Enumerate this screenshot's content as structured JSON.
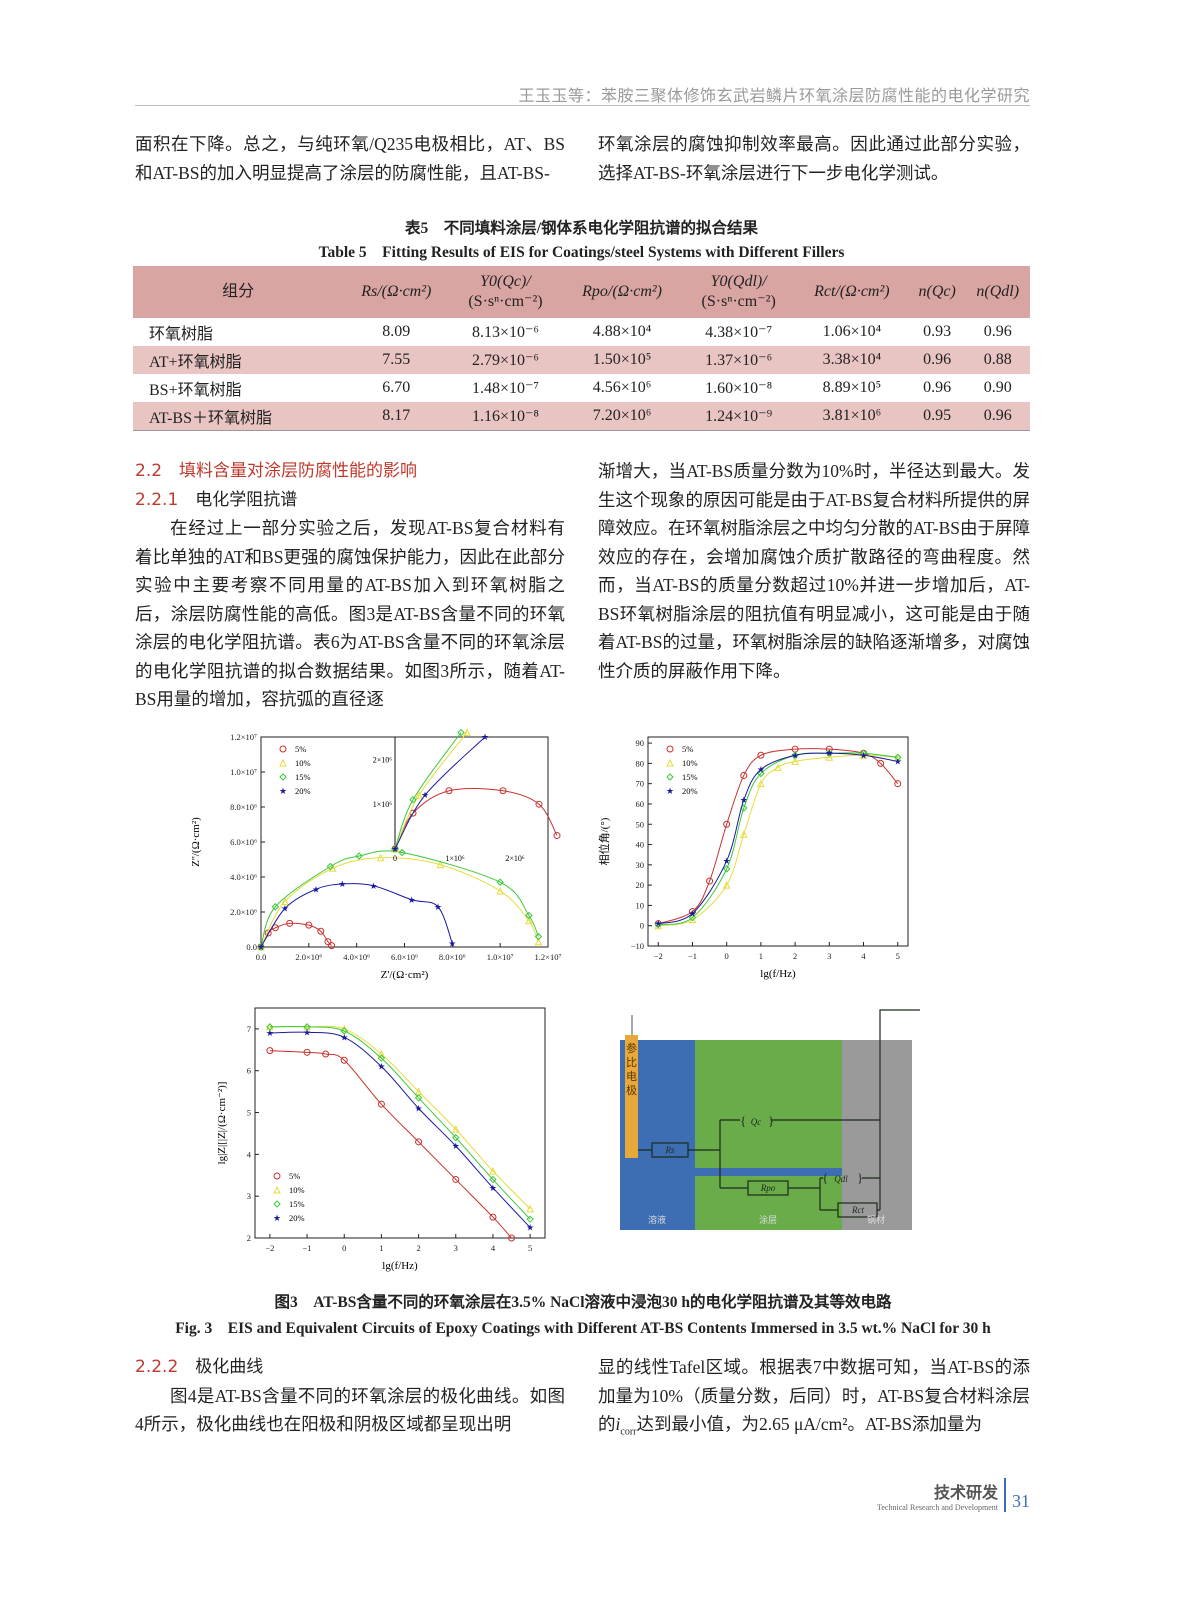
{
  "header": {
    "running_title": "王玉玉等：苯胺三聚体修饰玄武岩鳞片环氧涂层防腐性能的电化学研究"
  },
  "top_text": {
    "left": "面积在下降。总之，与纯环氧/Q235电极相比，AT、BS和AT-BS的加入明显提高了涂层的防腐性能，且AT-BS-",
    "right": "环氧涂层的腐蚀抑制效率最高。因此通过此部分实验，选择AT-BS-环氧涂层进行下一步电化学测试。"
  },
  "table5": {
    "caption_cn": "表5　不同填料涂层/钢体系电化学阻抗谱的拟合结果",
    "caption_en": "Table 5　Fitting Results of EIS for Coatings/steel Systems with Different Fillers",
    "headers": [
      [
        "组分",
        ""
      ],
      [
        "Rs/(Ω·cm²)",
        ""
      ],
      [
        "Y0(Qc)/",
        "(S·sⁿ·cm⁻²)"
      ],
      [
        "Rpo/(Ω·cm²)",
        ""
      ],
      [
        "Y0(Qdl)/",
        "(S·sⁿ·cm⁻²)"
      ],
      [
        "Rct/(Ω·cm²)",
        ""
      ],
      [
        "n(Qc)",
        ""
      ],
      [
        "n(Qdl)",
        ""
      ]
    ],
    "rows": [
      [
        "环氧树脂",
        "8.09",
        "8.13×10⁻⁶",
        "4.88×10⁴",
        "4.38×10⁻⁷",
        "1.06×10⁴",
        "0.93",
        "0.96"
      ],
      [
        "AT+环氧树脂",
        "7.55",
        "2.79×10⁻⁶",
        "1.50×10⁵",
        "1.37×10⁻⁶",
        "3.38×10⁴",
        "0.96",
        "0.88"
      ],
      [
        "BS+环氧树脂",
        "6.70",
        "1.48×10⁻⁷",
        "4.56×10⁶",
        "1.60×10⁻⁸",
        "8.89×10⁵",
        "0.96",
        "0.90"
      ],
      [
        "AT-BS＋环氧树脂",
        "8.17",
        "1.16×10⁻⁸",
        "7.20×10⁶",
        "1.24×10⁻⁹",
        "3.81×10⁶",
        "0.95",
        "0.96"
      ]
    ]
  },
  "section_2_2": {
    "heading": "2.2　填料含量对涂层防腐性能的影响",
    "sub_num": "2.2.1",
    "sub_title": "电化学阻抗谱",
    "left_para": "在经过上一部分实验之后，发现AT-BS复合材料有着比单独的AT和BS更强的腐蚀保护能力，因此在此部分实验中主要考察不同用量的AT-BS加入到环氧树脂之后，涂层防腐性能的高低。图3是AT-BS含量不同的环氧涂层的电化学阻抗谱。表6为AT-BS含量不同的环氧涂层的电化学阻抗谱的拟合数据结果。如图3所示，随着AT-BS用量的增加，容抗弧的直径逐",
    "right_para": "渐增大，当AT-BS质量分数为10%时，半径达到最大。发生这个现象的原因可能是由于AT-BS复合材料所提供的屏障效应。在环氧树脂涂层之中均匀分散的AT-BS由于屏障效应的存在，会增加腐蚀介质扩散路径的弯曲程度。然而，当AT-BS的质量分数超过10%并进一步增加后，AT-BS环氧树脂涂层的阻抗值有明显减小，这可能是由于随着AT-BS的过量，环氧树脂涂层的缺陷逐渐增多，对腐蚀性介质的屏蔽作用下降。"
  },
  "figure3": {
    "caption_cn": "图3　AT-BS含量不同的环氧涂层在3.5% NaCl溶液中浸泡30 h的电化学阻抗谱及其等效电路",
    "caption_en": "Fig. 3　EIS and Equivalent Circuits of Epoxy Coatings with Different AT-BS Contents Immersed in 3.5 wt.% NaCl for 30 h",
    "circuit": {
      "electrode_label": "参比电极",
      "regions": [
        "溶液",
        "涂层",
        "钢材"
      ],
      "Rs": "Rs",
      "Qc": "Qc",
      "Rpo": "Rpo",
      "Qdl": "Qdl",
      "Rct": "Rct",
      "colors": {
        "solution": "#3d6eb4",
        "coating": "#6aab4a",
        "steel": "#9a9a9a",
        "electrode": "#e9a83a"
      }
    }
  },
  "chart_data": [
    {
      "type": "scatter",
      "name": "nyquist",
      "xlabel": "Z'/(Ω·cm²)",
      "ylabel": "Z''/(Ω·cm²)",
      "xlim": [
        0,
        12000000
      ],
      "ylim": [
        0,
        12000000
      ],
      "xticks": [
        [
          0,
          "0.0"
        ],
        [
          2000000,
          "2.0×10⁶"
        ],
        [
          4000000,
          "4.0×10⁶"
        ],
        [
          6000000,
          "6.0×10⁶"
        ],
        [
          8000000,
          "8.0×10⁶"
        ],
        [
          10000000,
          "1.0×10⁷"
        ],
        [
          12000000,
          "1.2×10⁷"
        ]
      ],
      "yticks": [
        [
          0,
          "0.0"
        ],
        [
          2000000,
          "2.0×10⁶"
        ],
        [
          4000000,
          "4.0×10⁶"
        ],
        [
          6000000,
          "6.0×10⁶"
        ],
        [
          8000000,
          "8.0×10⁶"
        ],
        [
          10000000,
          "1.0×10⁷"
        ],
        [
          12000000,
          "1.2×10⁷"
        ]
      ],
      "legend": "top-left",
      "series": [
        {
          "name": "5%",
          "color": "#c8322e",
          "marker": "circle",
          "points": [
            [
              0,
              0
            ],
            [
              300000,
              800000
            ],
            [
              600000,
              1100000
            ],
            [
              1200000,
              1350000
            ],
            [
              2000000,
              1250000
            ],
            [
              2500000,
              900000
            ],
            [
              2800000,
              300000
            ],
            [
              2950000,
              80000
            ]
          ]
        },
        {
          "name": "10%",
          "color": "#e6dc3c",
          "marker": "triangle",
          "points": [
            [
              0,
              0
            ],
            [
              1000000,
              2600000
            ],
            [
              3000000,
              4500000
            ],
            [
              5000000,
              5100000
            ],
            [
              7500000,
              4700000
            ],
            [
              10000000,
              3200000
            ],
            [
              11200000,
              1500000
            ],
            [
              11600000,
              300000
            ]
          ]
        },
        {
          "name": "15%",
          "color": "#3cc83c",
          "marker": "diamond",
          "points": [
            [
              0,
              0
            ],
            [
              600000,
              2300000
            ],
            [
              2900000,
              4600000
            ],
            [
              4100000,
              5200000
            ],
            [
              5900000,
              5400000
            ],
            [
              10000000,
              3700000
            ],
            [
              11200000,
              1800000
            ],
            [
              11600000,
              600000
            ]
          ]
        },
        {
          "name": "20%",
          "color": "#1a1aa0",
          "marker": "star",
          "points": [
            [
              0,
              0
            ],
            [
              1000000,
              2200000
            ],
            [
              2300000,
              3300000
            ],
            [
              3400000,
              3600000
            ],
            [
              4700000,
              3500000
            ],
            [
              6300000,
              2700000
            ],
            [
              7400000,
              2300000
            ],
            [
              8000000,
              200000
            ]
          ]
        }
      ],
      "inset": {
        "xlim": [
          0,
          2500000
        ],
        "ylim": [
          0,
          2500000
        ],
        "xticks": [
          [
            0,
            "0"
          ],
          [
            1000000,
            "1×10⁶"
          ],
          [
            2000000,
            "2×10⁶"
          ]
        ],
        "yticks": [
          [
            1000000,
            "1×10⁶"
          ],
          [
            2000000,
            "2×10⁶"
          ]
        ],
        "series": [
          {
            "name": "5%",
            "points": [
              [
                0,
                0
              ],
              [
                300000,
                800000
              ],
              [
                900000,
                1300000
              ],
              [
                1800000,
                1300000
              ],
              [
                2400000,
                1000000
              ],
              [
                2700000,
                300000
              ]
            ]
          },
          {
            "name": "10%",
            "points": [
              [
                0,
                0
              ],
              [
                400000,
                1200000
              ],
              [
                1200000,
                2600000
              ]
            ]
          },
          {
            "name": "15%",
            "points": [
              [
                0,
                0
              ],
              [
                300000,
                1100000
              ],
              [
                1100000,
                2600000
              ]
            ]
          },
          {
            "name": "20%",
            "points": [
              [
                0,
                0
              ],
              [
                500000,
                1200000
              ],
              [
                1500000,
                2500000
              ]
            ]
          }
        ]
      }
    },
    {
      "type": "line",
      "name": "bode-phase",
      "xlabel": "lg(f/Hz)",
      "ylabel": "相位角/(°)",
      "xlim": [
        -2.3,
        5.3
      ],
      "ylim": [
        -10,
        93
      ],
      "xticks": [
        [
          -2,
          "−2"
        ],
        [
          -1,
          "−1"
        ],
        [
          0,
          "0"
        ],
        [
          1,
          "1"
        ],
        [
          2,
          "2"
        ],
        [
          3,
          "3"
        ],
        [
          4,
          "4"
        ],
        [
          5,
          "5"
        ]
      ],
      "yticks": [
        [
          -10,
          "−10"
        ],
        [
          0,
          "0"
        ],
        [
          10,
          "10"
        ],
        [
          20,
          "20"
        ],
        [
          30,
          "30"
        ],
        [
          40,
          "40"
        ],
        [
          50,
          "50"
        ],
        [
          60,
          "60"
        ],
        [
          70,
          "70"
        ],
        [
          80,
          "80"
        ],
        [
          90,
          "90"
        ]
      ],
      "legend": "top-left",
      "series": [
        {
          "name": "5%",
          "color": "#c8322e",
          "marker": "circle",
          "points": [
            [
              -2,
              1
            ],
            [
              -1,
              7
            ],
            [
              -0.5,
              22
            ],
            [
              0,
              50
            ],
            [
              0.5,
              74
            ],
            [
              1,
              84
            ],
            [
              2,
              87
            ],
            [
              3,
              87
            ],
            [
              4,
              85
            ],
            [
              4.5,
              80
            ],
            [
              5,
              70
            ]
          ]
        },
        {
          "name": "10%",
          "color": "#e6dc3c",
          "marker": "triangle",
          "points": [
            [
              -2,
              0
            ],
            [
              -1,
              3
            ],
            [
              0,
              20
            ],
            [
              0.5,
              45
            ],
            [
              1,
              70
            ],
            [
              1.5,
              78
            ],
            [
              2,
              81
            ],
            [
              3,
              83
            ],
            [
              4,
              84
            ],
            [
              5,
              83
            ]
          ]
        },
        {
          "name": "15%",
          "color": "#3cc83c",
          "marker": "diamond",
          "points": [
            [
              -2,
              0.5
            ],
            [
              -1,
              4
            ],
            [
              0,
              28
            ],
            [
              0.5,
              58
            ],
            [
              1,
              75
            ],
            [
              2,
              84
            ],
            [
              3,
              85
            ],
            [
              4,
              85
            ],
            [
              5,
              83
            ]
          ]
        },
        {
          "name": "20%",
          "color": "#1a1aa0",
          "marker": "star",
          "points": [
            [
              -2,
              1
            ],
            [
              -1,
              6
            ],
            [
              0,
              32
            ],
            [
              0.5,
              62
            ],
            [
              1,
              77
            ],
            [
              2,
              84
            ],
            [
              3,
              85
            ],
            [
              4,
              84
            ],
            [
              5,
              81
            ]
          ]
        }
      ]
    },
    {
      "type": "line",
      "name": "bode-modulus",
      "xlabel": "lg(f/Hz)",
      "ylabel": "lg|Z|[|Z|/(Ω·cm⁻²)]",
      "xlim": [
        -2.4,
        5.4
      ],
      "ylim": [
        2,
        7.5
      ],
      "xticks": [
        [
          -2,
          "−2"
        ],
        [
          -1,
          "−1"
        ],
        [
          0,
          "0"
        ],
        [
          1,
          "1"
        ],
        [
          2,
          "2"
        ],
        [
          3,
          "3"
        ],
        [
          4,
          "4"
        ],
        [
          5,
          "5"
        ]
      ],
      "yticks": [
        [
          2,
          "2"
        ],
        [
          3,
          "3"
        ],
        [
          4,
          "4"
        ],
        [
          5,
          "5"
        ],
        [
          6,
          "6"
        ],
        [
          7,
          "7"
        ]
      ],
      "legend": "bottom-left",
      "series": [
        {
          "name": "5%",
          "color": "#c8322e",
          "marker": "circle",
          "points": [
            [
              -2,
              6.48
            ],
            [
              -1,
              6.44
            ],
            [
              -0.5,
              6.4
            ],
            [
              0,
              6.25
            ],
            [
              1,
              5.2
            ],
            [
              2,
              4.3
            ],
            [
              3,
              3.4
            ],
            [
              4,
              2.5
            ],
            [
              4.5,
              2.0
            ]
          ]
        },
        {
          "name": "10%",
          "color": "#e6dc3c",
          "marker": "triangle",
          "points": [
            [
              -2,
              7.05
            ],
            [
              -1,
              7.05
            ],
            [
              0,
              7.0
            ],
            [
              1,
              6.4
            ],
            [
              2,
              5.5
            ],
            [
              3,
              4.6
            ],
            [
              4,
              3.6
            ],
            [
              5,
              2.7
            ]
          ]
        },
        {
          "name": "15%",
          "color": "#3cc83c",
          "marker": "diamond",
          "points": [
            [
              -2,
              7.05
            ],
            [
              -1,
              7.05
            ],
            [
              0,
              6.95
            ],
            [
              1,
              6.3
            ],
            [
              2,
              5.35
            ],
            [
              3,
              4.4
            ],
            [
              4,
              3.4
            ],
            [
              5,
              2.45
            ]
          ]
        },
        {
          "name": "20%",
          "color": "#1a1aa0",
          "marker": "star",
          "points": [
            [
              -2,
              6.9
            ],
            [
              -1,
              6.92
            ],
            [
              0,
              6.8
            ],
            [
              1,
              6.1
            ],
            [
              2,
              5.1
            ],
            [
              3,
              4.2
            ],
            [
              4,
              3.2
            ],
            [
              5,
              2.25
            ]
          ]
        }
      ]
    }
  ],
  "section_2_2_2": {
    "sub_num": "2.2.2",
    "sub_title": "极化曲线",
    "left_para": "图4是AT-BS含量不同的环氧涂层的极化曲线。如图4所示，极化曲线也在阳极和阴极区域都呈现出明",
    "right_para_1": "显的线性Tafel区域。根据表7中数据可知，当AT-BS的添加量为10%（质量分数，后同）时，AT-BS复合材料涂层的",
    "right_i": "i",
    "right_sub": "corr",
    "right_para_2": "达到最小值，为2.65 μA/cm²。AT-BS添加量为"
  },
  "footer": {
    "section_cn": "技术研发",
    "section_en": "Technical Research and Development",
    "page": "31"
  }
}
